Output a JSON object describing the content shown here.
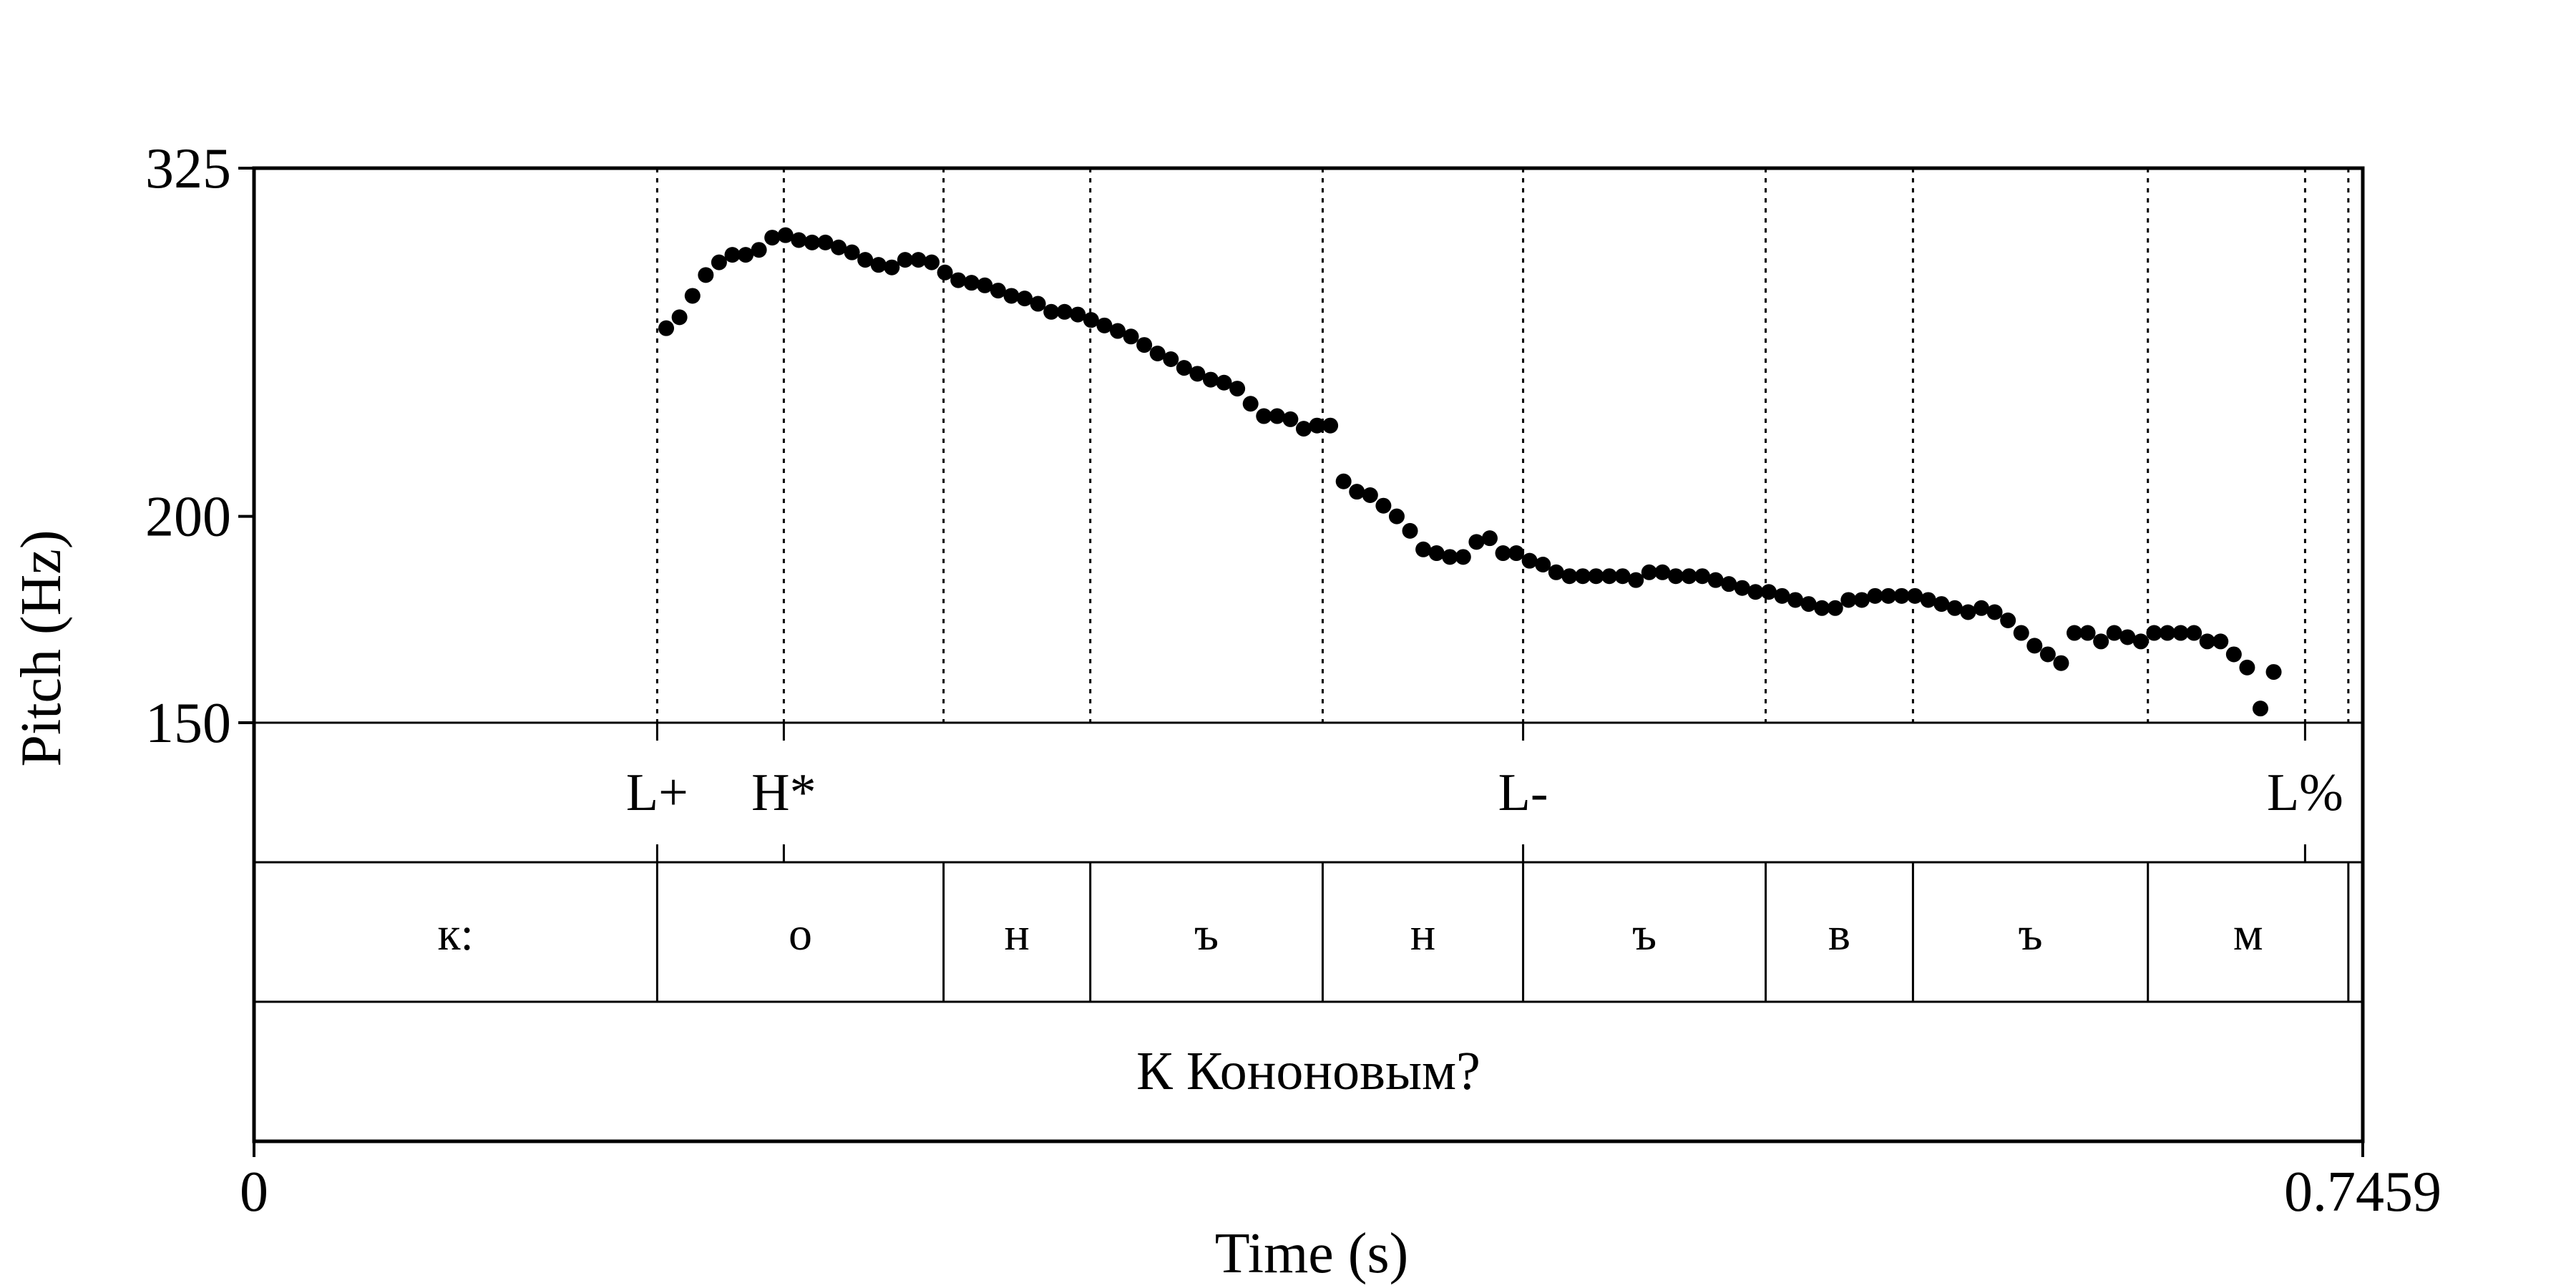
{
  "chart_data": {
    "type": "scatter",
    "title": "",
    "xlabel": "Time (s)",
    "ylabel": "Pitch (Hz)",
    "xlim": [
      0,
      0.7459
    ],
    "ylim": [
      150,
      325
    ],
    "x_tick_labels": [
      "0",
      "0.7459"
    ],
    "y_ticks": [
      150,
      200,
      325
    ],
    "y_tick_labels": [
      "150",
      "200",
      "325"
    ],
    "y_scale": "log",
    "series": [
      {
        "values": [
          [
            0.1458,
            260
          ],
          [
            0.1505,
            264
          ],
          [
            0.1551,
            272
          ],
          [
            0.1598,
            280
          ],
          [
            0.1645,
            285
          ],
          [
            0.1692,
            288
          ],
          [
            0.1739,
            288
          ],
          [
            0.1786,
            290
          ],
          [
            0.1833,
            295
          ],
          [
            0.188,
            296
          ],
          [
            0.1927,
            294
          ],
          [
            0.1974,
            293
          ],
          [
            0.2021,
            293
          ],
          [
            0.2068,
            291
          ],
          [
            0.2115,
            289
          ],
          [
            0.2162,
            286
          ],
          [
            0.2209,
            284
          ],
          [
            0.2256,
            283
          ],
          [
            0.2303,
            286
          ],
          [
            0.235,
            286
          ],
          [
            0.2397,
            285
          ],
          [
            0.2444,
            281
          ],
          [
            0.2491,
            278
          ],
          [
            0.2538,
            277
          ],
          [
            0.2585,
            276
          ],
          [
            0.2632,
            274
          ],
          [
            0.2679,
            272
          ],
          [
            0.2726,
            271
          ],
          [
            0.2773,
            269
          ],
          [
            0.282,
            266
          ],
          [
            0.2867,
            266
          ],
          [
            0.2914,
            265
          ],
          [
            0.2961,
            263
          ],
          [
            0.3008,
            261
          ],
          [
            0.3055,
            259
          ],
          [
            0.3102,
            257
          ],
          [
            0.3149,
            254
          ],
          [
            0.3196,
            251
          ],
          [
            0.3243,
            249
          ],
          [
            0.329,
            246
          ],
          [
            0.3337,
            244
          ],
          [
            0.3384,
            242
          ],
          [
            0.3431,
            241
          ],
          [
            0.3478,
            239
          ],
          [
            0.3525,
            234
          ],
          [
            0.3572,
            230
          ],
          [
            0.3619,
            230
          ],
          [
            0.3666,
            229
          ],
          [
            0.3713,
            226
          ],
          [
            0.376,
            227
          ],
          [
            0.3807,
            227
          ],
          [
            0.3854,
            210
          ],
          [
            0.3901,
            207
          ],
          [
            0.3948,
            206
          ],
          [
            0.3995,
            203
          ],
          [
            0.4042,
            200
          ],
          [
            0.4089,
            196
          ],
          [
            0.4136,
            191
          ],
          [
            0.4183,
            190
          ],
          [
            0.423,
            189
          ],
          [
            0.4277,
            189
          ],
          [
            0.4324,
            193
          ],
          [
            0.4371,
            194
          ],
          [
            0.4418,
            190
          ],
          [
            0.4465,
            190
          ],
          [
            0.4512,
            188
          ],
          [
            0.4559,
            187
          ],
          [
            0.4606,
            185
          ],
          [
            0.4653,
            184
          ],
          [
            0.47,
            184
          ],
          [
            0.4747,
            184
          ],
          [
            0.4794,
            184
          ],
          [
            0.4841,
            184
          ],
          [
            0.4888,
            183
          ],
          [
            0.4935,
            185
          ],
          [
            0.4982,
            185
          ],
          [
            0.5029,
            184
          ],
          [
            0.5076,
            184
          ],
          [
            0.5123,
            184
          ],
          [
            0.517,
            183
          ],
          [
            0.5217,
            182
          ],
          [
            0.5264,
            181
          ],
          [
            0.5311,
            180
          ],
          [
            0.5358,
            180
          ],
          [
            0.5405,
            179
          ],
          [
            0.5452,
            178
          ],
          [
            0.5499,
            177
          ],
          [
            0.5546,
            176
          ],
          [
            0.5593,
            176
          ],
          [
            0.564,
            178
          ],
          [
            0.5687,
            178
          ],
          [
            0.5734,
            179
          ],
          [
            0.5781,
            179
          ],
          [
            0.5828,
            179
          ],
          [
            0.5875,
            179
          ],
          [
            0.5922,
            178
          ],
          [
            0.5969,
            177
          ],
          [
            0.6016,
            176
          ],
          [
            0.6063,
            175
          ],
          [
            0.611,
            176
          ],
          [
            0.6157,
            175
          ],
          [
            0.6204,
            173
          ],
          [
            0.6251,
            170
          ],
          [
            0.6298,
            167
          ],
          [
            0.6345,
            165
          ],
          [
            0.6392,
            163
          ],
          [
            0.6439,
            170
          ],
          [
            0.6486,
            170
          ],
          [
            0.6533,
            168
          ],
          [
            0.658,
            170
          ],
          [
            0.6627,
            169
          ],
          [
            0.6674,
            168
          ],
          [
            0.6721,
            170
          ],
          [
            0.6768,
            170
          ],
          [
            0.6815,
            170
          ],
          [
            0.6862,
            170
          ],
          [
            0.6909,
            168
          ],
          [
            0.6956,
            168
          ],
          [
            0.7003,
            165
          ],
          [
            0.705,
            162
          ],
          [
            0.7097,
            153
          ],
          [
            0.7144,
            161
          ]
        ]
      }
    ],
    "boundaries": [
      0.1426,
      0.1874,
      0.2439,
      0.2958,
      0.378,
      0.4489,
      0.5347,
      0.5868,
      0.6699,
      0.7255,
      0.7408
    ],
    "tiers": [
      {
        "name": "tones",
        "points": [
          {
            "time": 0.1426,
            "label": "L+"
          },
          {
            "time": 0.1874,
            "label": "H*"
          },
          {
            "time": 0.4489,
            "label": "L-"
          },
          {
            "time": 0.7255,
            "label": "L%"
          }
        ]
      },
      {
        "name": "segments",
        "intervals": [
          {
            "start": 0,
            "end": 0.1426,
            "label": "к:"
          },
          {
            "start": 0.1426,
            "end": 0.2439,
            "label": "о"
          },
          {
            "start": 0.2439,
            "end": 0.2958,
            "label": "н"
          },
          {
            "start": 0.2958,
            "end": 0.378,
            "label": "ъ"
          },
          {
            "start": 0.378,
            "end": 0.4489,
            "label": "н"
          },
          {
            "start": 0.4489,
            "end": 0.5347,
            "label": "ъ"
          },
          {
            "start": 0.5347,
            "end": 0.5868,
            "label": "в"
          },
          {
            "start": 0.5868,
            "end": 0.6699,
            "label": "ъ"
          },
          {
            "start": 0.6699,
            "end": 0.7408,
            "label": "м"
          },
          {
            "start": 0.7408,
            "end": 0.7459,
            "label": ""
          }
        ]
      },
      {
        "name": "sentence",
        "intervals": [
          {
            "start": 0,
            "end": 0.7459,
            "label": "К Кононовым?"
          }
        ]
      }
    ]
  }
}
